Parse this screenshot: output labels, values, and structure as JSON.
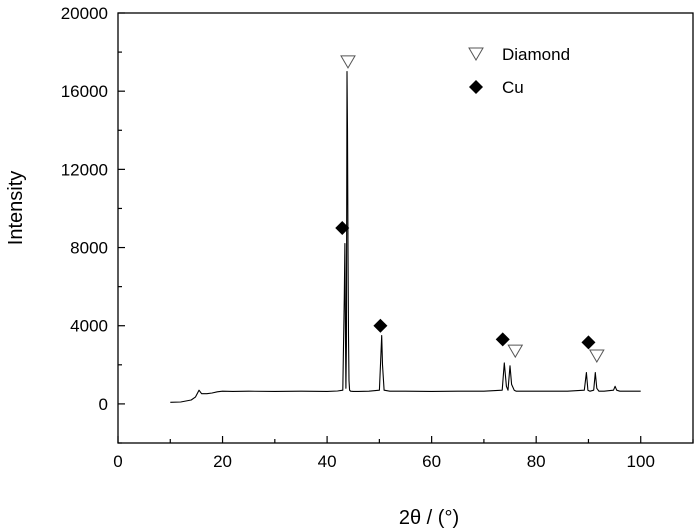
{
  "chart_data": {
    "type": "line",
    "xlabel": "2θ / (°)",
    "ylabel": "Intensity",
    "xlim": [
      0,
      110
    ],
    "ylim": [
      -2000,
      20000
    ],
    "xticks": [
      0,
      20,
      40,
      60,
      80,
      100
    ],
    "yticks": [
      0,
      4000,
      8000,
      12000,
      16000,
      20000
    ],
    "x_minor_step": 10,
    "y_minor_step": 2000,
    "grid": false,
    "legend_position": "top-right",
    "series": [
      {
        "color": "#000000",
        "x": [
          10,
          12,
          14,
          14.8,
          15.5,
          16,
          17,
          18,
          19,
          20,
          22,
          25,
          30,
          35,
          40,
          42,
          43,
          43.3,
          43.4,
          43.5,
          43.6,
          43.7,
          43.8,
          43.9,
          44.0,
          44.1,
          44.2,
          44.3,
          44.5,
          45,
          46,
          48,
          50,
          50.3,
          50.45,
          50.6,
          50.9,
          52,
          55,
          60,
          65,
          70,
          73.5,
          73.9,
          74.3,
          74.6,
          75,
          75.3,
          75.8,
          76.2,
          78,
          82,
          86,
          89.2,
          89.6,
          89.9,
          90.3,
          91,
          91.3,
          91.6,
          92,
          93,
          94.8,
          95.1,
          95.4,
          96,
          98,
          100
        ],
        "y": [
          80,
          100,
          200,
          350,
          700,
          520,
          520,
          560,
          620,
          650,
          640,
          650,
          640,
          650,
          640,
          660,
          700,
          5500,
          8200,
          4000,
          800,
          3000,
          17000,
          14000,
          8000,
          3500,
          1200,
          700,
          650,
          640,
          640,
          650,
          700,
          2500,
          3500,
          2000,
          700,
          650,
          650,
          640,
          650,
          650,
          700,
          2100,
          900,
          700,
          1950,
          1000,
          700,
          650,
          650,
          650,
          650,
          700,
          1600,
          700,
          650,
          700,
          1600,
          800,
          650,
          650,
          700,
          900,
          700,
          650,
          650,
          650
        ]
      }
    ],
    "markers": {
      "diamond": [
        {
          "x": 44,
          "y": 17500
        },
        {
          "x": 76,
          "y": 2700
        },
        {
          "x": 91.6,
          "y": 2450
        }
      ],
      "cu": [
        {
          "x": 42.9,
          "y": 9000
        },
        {
          "x": 50.2,
          "y": 4000
        },
        {
          "x": 73.6,
          "y": 3300
        },
        {
          "x": 90,
          "y": 3150
        }
      ]
    },
    "legend": [
      {
        "symbol": "open-down-triangle",
        "label": "Diamond"
      },
      {
        "symbol": "filled-diamond",
        "label": "Cu"
      }
    ]
  }
}
